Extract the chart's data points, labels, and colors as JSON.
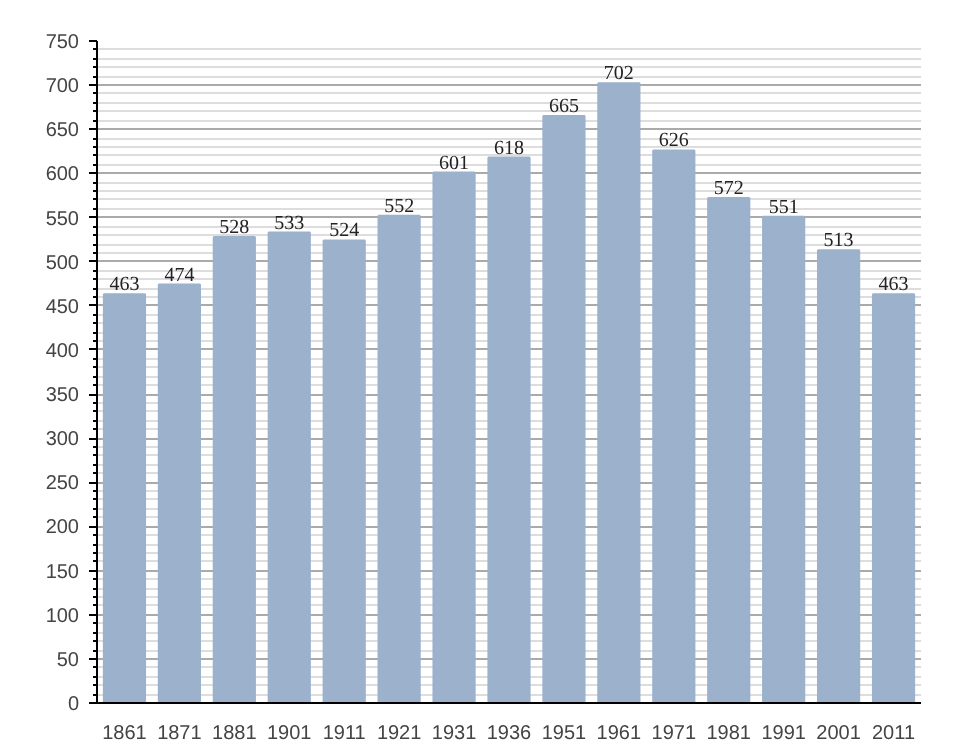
{
  "chart_data": {
    "type": "bar",
    "categories": [
      "1861",
      "1871",
      "1881",
      "1901",
      "1911",
      "1921",
      "1931",
      "1936",
      "1951",
      "1961",
      "1971",
      "1981",
      "1991",
      "2001",
      "2011"
    ],
    "values": [
      463,
      474,
      528,
      533,
      524,
      552,
      601,
      618,
      665,
      702,
      626,
      572,
      551,
      513,
      463
    ],
    "color": "#9bb1cc",
    "ylim": [
      0,
      750
    ],
    "yticks": [
      0,
      50,
      100,
      150,
      200,
      250,
      300,
      350,
      400,
      450,
      500,
      550,
      600,
      650,
      700,
      750
    ],
    "grid": "y",
    "data_labels": true
  }
}
